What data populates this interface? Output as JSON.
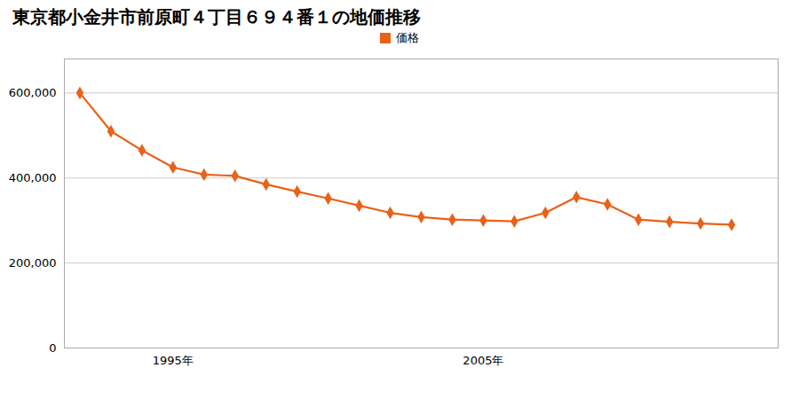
{
  "chart_data": {
    "type": "line",
    "title": "東京都小金井市前原町４丁目６９４番１の地価推移",
    "x": [
      1992,
      1993,
      1994,
      1995,
      1996,
      1997,
      1998,
      1999,
      2000,
      2001,
      2002,
      2003,
      2004,
      2005,
      2006,
      2007,
      2008,
      2009,
      2010,
      2011,
      2012,
      2013
    ],
    "series": [
      {
        "name": "価格",
        "color": "#e8621a",
        "marker": "diamond",
        "values": [
          600000,
          510000,
          465000,
          425000,
          408000,
          405000,
          385000,
          368000,
          352000,
          335000,
          318000,
          308000,
          302000,
          300000,
          298000,
          318000,
          355000,
          338000,
          302000,
          297000,
          293000,
          290000
        ]
      }
    ],
    "xlim": [
      1991.5,
      2014.5
    ],
    "xticks": [
      {
        "value": 1995,
        "label": "1995年"
      },
      {
        "value": 2005,
        "label": "2005年"
      }
    ],
    "ylim": [
      0,
      680000
    ],
    "yticks": [
      0,
      {
        "value": 200000,
        "label": "200,000"
      },
      {
        "value": 400000,
        "label": "400,000"
      },
      {
        "value": 600000,
        "label": "600,000"
      }
    ],
    "grid": true,
    "legend": "top"
  }
}
